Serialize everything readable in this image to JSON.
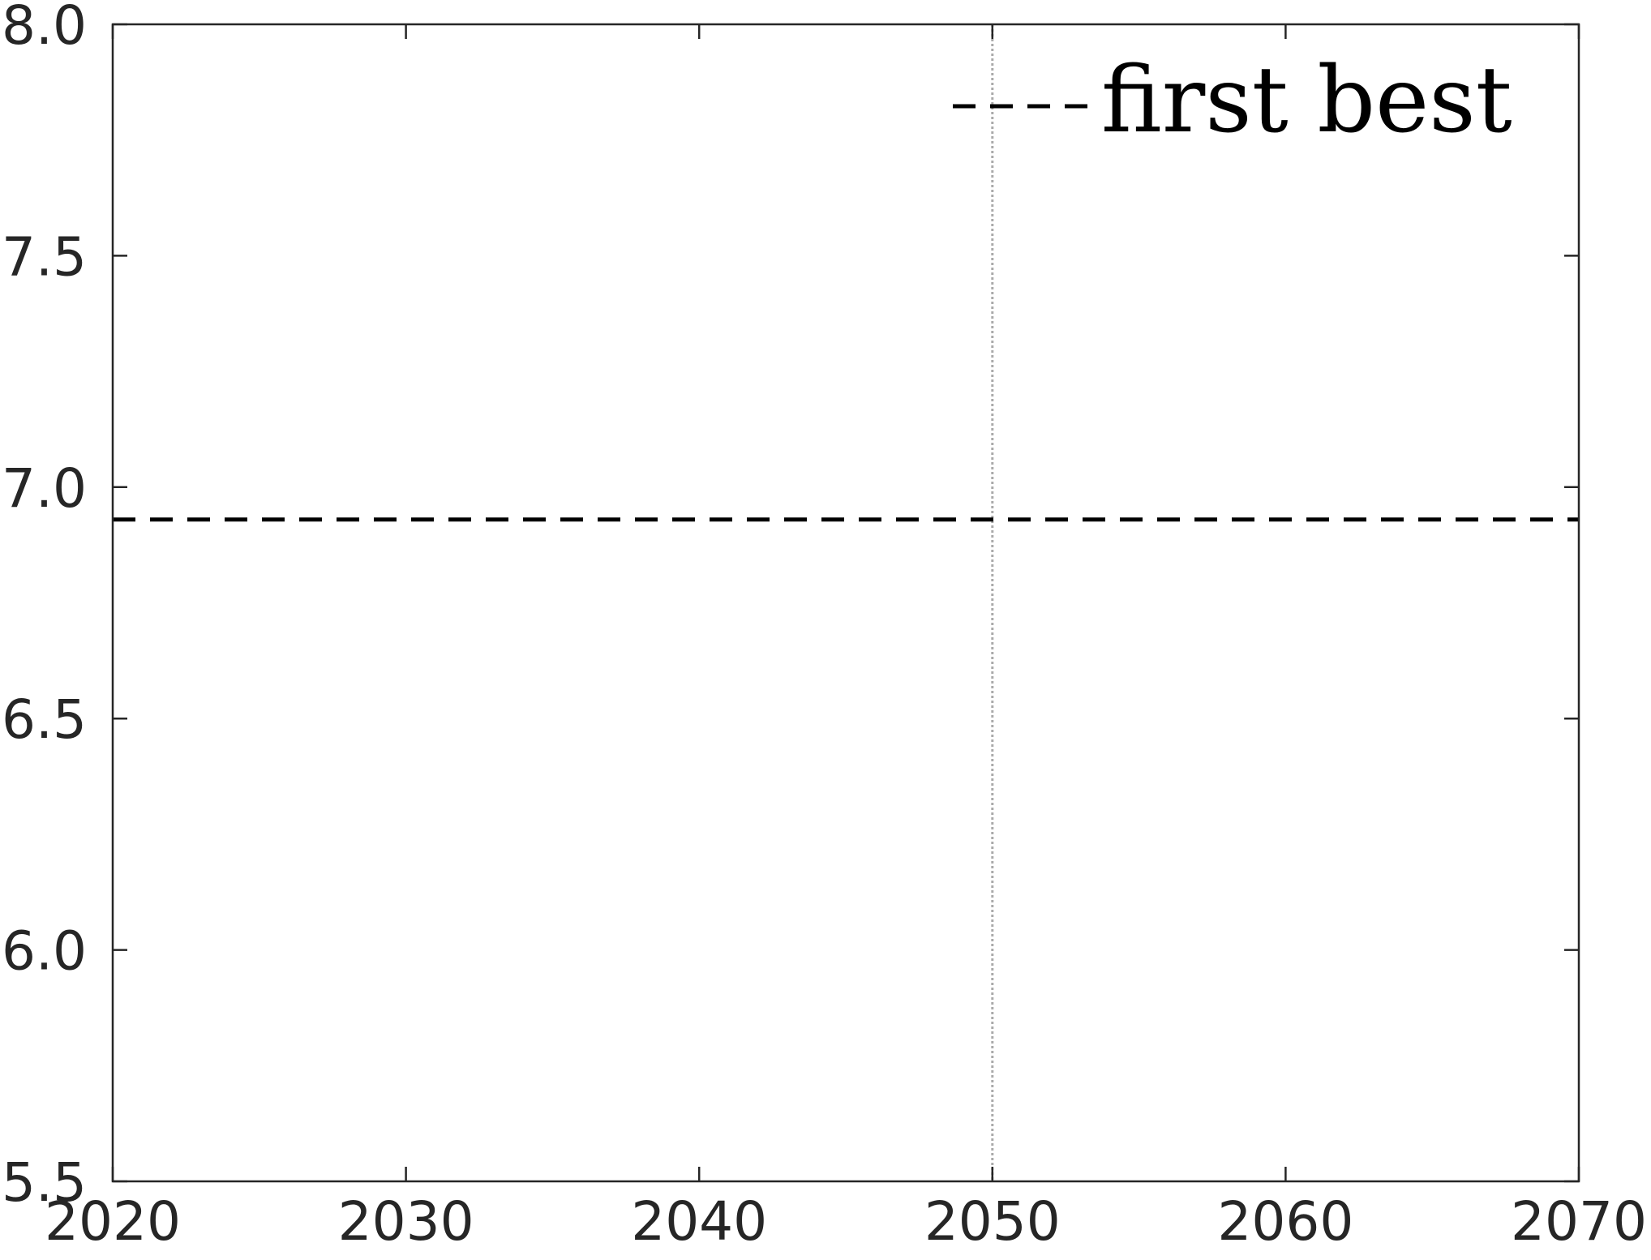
{
  "chart_data": {
    "type": "line",
    "title": "",
    "xlabel": "",
    "ylabel": "",
    "xlim": [
      2020,
      2070
    ],
    "ylim": [
      5.5,
      8.0
    ],
    "x_ticks": [
      2020,
      2030,
      2040,
      2050,
      2060,
      2070
    ],
    "x_tick_labels": [
      "2020",
      "2030",
      "2040",
      "2050",
      "2060",
      "2070"
    ],
    "y_ticks": [
      5.5,
      6.0,
      6.5,
      7.0,
      7.5,
      8.0
    ],
    "y_tick_labels": [
      "5.5",
      "6.0",
      "6.5",
      "7.0",
      "7.5",
      "8.0"
    ],
    "grid": false,
    "legend_position": "top-right",
    "series": [
      {
        "name": "first best",
        "style": "dashed",
        "color": "#000000",
        "x": [
          2020,
          2070
        ],
        "values": [
          6.93,
          6.93
        ]
      }
    ],
    "reference_lines": [
      {
        "axis": "x",
        "value": 2050,
        "style": "dotted",
        "color": "#aaaaaa"
      }
    ]
  },
  "colors": {
    "axes": "#262626",
    "tick_text": "#262626",
    "series": "#000000",
    "reference_line": "#aaaaaa"
  }
}
